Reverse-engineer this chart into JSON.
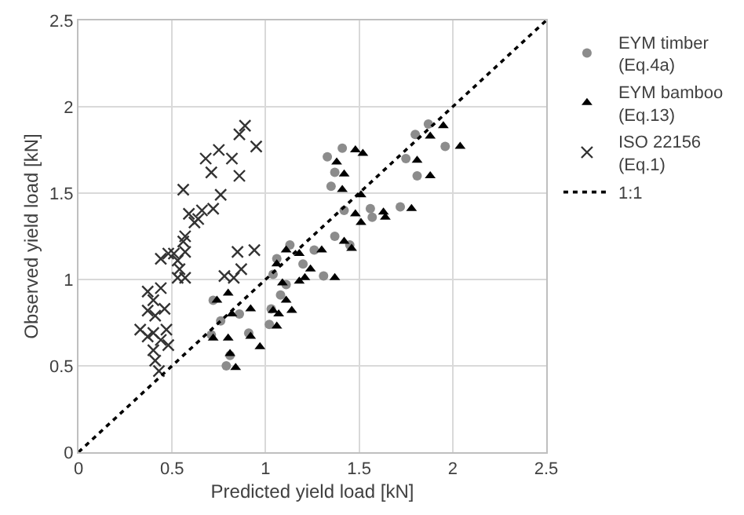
{
  "chart_data": {
    "type": "scatter",
    "xlabel": "Predicted yield load [kN]",
    "ylabel": "Observed yield load [kN]",
    "xlim": [
      0,
      2.5
    ],
    "xticks": [
      0,
      0.5,
      1,
      1.5,
      2,
      2.5
    ],
    "ylim": [
      0,
      2.5
    ],
    "yticks": [
      0,
      0.5,
      1,
      1.5,
      2,
      2.5
    ],
    "grid": true,
    "legend": "right",
    "series": [
      {
        "name": "EYM timber\n(Eq.4a)",
        "color": "#8c8c8c",
        "marker": "circle",
        "x": [
          0.72,
          0.76,
          0.71,
          0.81,
          0.79,
          0.86,
          0.91,
          1.03,
          1.02,
          1.04,
          1.06,
          1.13,
          1.2,
          1.26,
          1.31,
          1.11,
          1.33,
          1.41,
          1.37,
          1.35,
          1.42,
          1.56,
          1.37,
          1.45,
          1.08,
          1.87,
          1.8,
          1.96,
          1.75,
          1.81,
          1.72,
          1.57
        ],
        "values": [
          0.88,
          0.76,
          0.68,
          0.56,
          0.5,
          0.8,
          0.69,
          0.83,
          0.74,
          1.03,
          1.12,
          1.2,
          1.09,
          1.17,
          1.02,
          0.97,
          1.71,
          1.76,
          1.62,
          1.54,
          1.4,
          1.41,
          1.25,
          1.2,
          0.91,
          1.9,
          1.84,
          1.77,
          1.7,
          1.6,
          1.42,
          1.36
        ]
      },
      {
        "name": "EYM bamboo\n(Eq.13)",
        "color": "#000000",
        "marker": "triangle",
        "x": [
          0.8,
          0.74,
          0.82,
          0.92,
          0.72,
          0.8,
          0.92,
          0.97,
          0.81,
          0.84,
          1.04,
          1.07,
          1.06,
          1.14,
          1.11,
          1.09,
          1.06,
          1.11,
          1.18,
          1.24,
          1.18,
          1.21,
          1.3,
          1.37,
          1.38,
          1.42,
          1.41,
          1.51,
          1.48,
          1.52,
          1.48,
          1.51,
          1.63,
          1.42,
          1.46,
          1.95,
          1.88,
          2.04,
          1.81,
          1.88,
          1.78,
          1.64
        ],
        "values": [
          0.92,
          0.88,
          0.8,
          0.83,
          0.66,
          0.66,
          0.67,
          0.61,
          0.57,
          0.49,
          0.82,
          0.8,
          0.73,
          0.82,
          0.88,
          0.98,
          1.09,
          1.17,
          1.15,
          1.06,
          0.99,
          1.01,
          1.17,
          1.01,
          1.68,
          1.61,
          1.52,
          1.49,
          1.75,
          1.73,
          1.38,
          1.33,
          1.39,
          1.22,
          1.18,
          1.89,
          1.83,
          1.77,
          1.69,
          1.6,
          1.41,
          1.36
        ]
      },
      {
        "name": "ISO 22156\n(Eq.1)",
        "color": "#333333",
        "marker": "cross",
        "x": [
          0.89,
          0.86,
          0.95,
          0.75,
          0.68,
          0.82,
          0.71,
          0.86,
          0.56,
          0.76,
          0.72,
          0.66,
          0.59,
          0.64,
          0.62,
          0.57,
          0.56,
          0.51,
          0.48,
          0.44,
          0.53,
          0.57,
          0.54,
          0.53,
          0.57,
          0.85,
          0.94,
          0.87,
          0.83,
          0.78,
          0.37,
          0.44,
          0.4,
          0.46,
          0.37,
          0.41,
          0.33,
          0.4,
          0.47,
          0.37,
          0.44,
          0.48,
          0.4,
          0.41,
          0.43
        ],
        "values": [
          1.89,
          1.84,
          1.77,
          1.75,
          1.7,
          1.7,
          1.62,
          1.6,
          1.52,
          1.49,
          1.41,
          1.4,
          1.38,
          1.35,
          1.33,
          1.25,
          1.22,
          1.15,
          1.15,
          1.12,
          1.11,
          1.16,
          1.06,
          1.01,
          1.01,
          1.16,
          1.17,
          1.06,
          1.01,
          1.02,
          0.93,
          0.95,
          0.88,
          0.83,
          0.82,
          0.79,
          0.71,
          0.69,
          0.71,
          0.67,
          0.65,
          0.62,
          0.59,
          0.53,
          0.47
        ]
      },
      {
        "name": "1:1",
        "type": "line",
        "color": "#000000",
        "line_style": "dotted",
        "marker": "none",
        "x": [
          0,
          2.5
        ],
        "values": [
          0,
          2.5
        ]
      }
    ]
  }
}
